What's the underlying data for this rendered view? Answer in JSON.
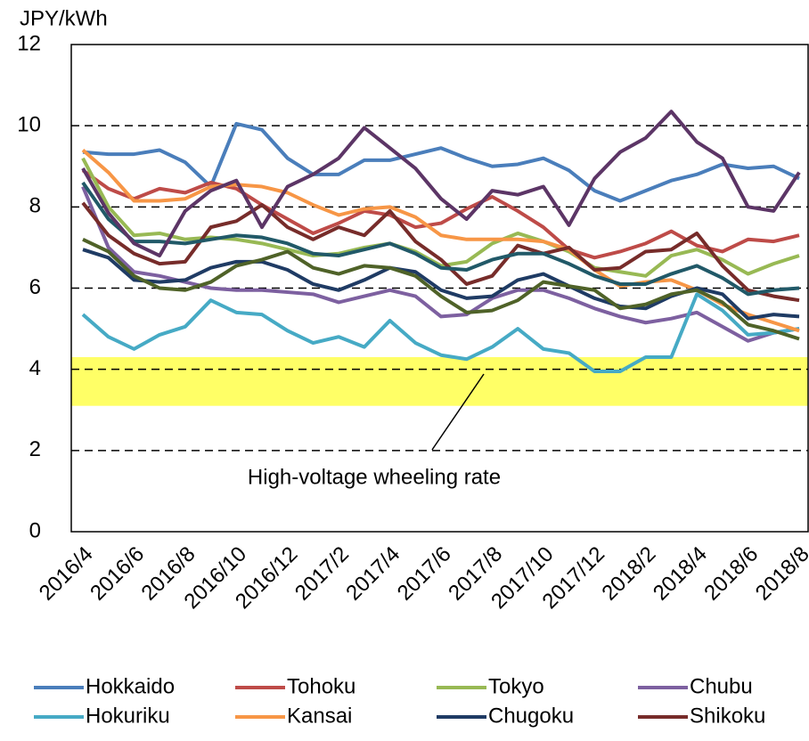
{
  "chart_data": {
    "type": "line",
    "y_label": "JPY/kWh",
    "annotation": "High-voltage wheeling rate",
    "band": {
      "range": [
        3.1,
        4.3
      ],
      "color": "#ffff66"
    },
    "categories": [
      "2016/4",
      null,
      "2016/6",
      null,
      "2016/8",
      null,
      "2016/10",
      null,
      "2016/12",
      null,
      "2017/2",
      null,
      "2017/4",
      null,
      "2017/6",
      null,
      "2017/8",
      null,
      "2017/10",
      null,
      "2017/12",
      null,
      "2018/2",
      null,
      "2018/4",
      null,
      "2018/6",
      null,
      "2018/8"
    ],
    "ylim": [
      0,
      12
    ],
    "yticks": [
      0,
      2,
      4,
      6,
      8,
      10,
      12
    ],
    "grid": true,
    "series": [
      {
        "name": "Hokkaido",
        "color": "#4a7ebb",
        "values": [
          9.35,
          9.3,
          9.3,
          9.4,
          9.1,
          8.5,
          10.05,
          9.9,
          9.2,
          8.8,
          8.8,
          9.15,
          9.15,
          9.3,
          9.45,
          9.2,
          9.0,
          9.05,
          9.2,
          8.9,
          8.4,
          8.15,
          8.4,
          8.65,
          8.8,
          9.05,
          8.95,
          9.0,
          8.7
        ]
      },
      {
        "name": "Tohoku",
        "color": "#be4b48",
        "values": [
          8.9,
          8.45,
          8.2,
          8.45,
          8.35,
          8.6,
          8.45,
          8.05,
          7.7,
          7.35,
          7.6,
          7.9,
          7.8,
          7.5,
          7.6,
          7.95,
          8.25,
          7.9,
          7.5,
          6.95,
          6.75,
          6.9,
          7.1,
          7.4,
          7.05,
          6.9,
          7.2,
          7.15,
          7.3
        ]
      },
      {
        "name": "Tokyo",
        "color": "#98b954",
        "values": [
          9.2,
          8.0,
          7.3,
          7.35,
          7.2,
          7.25,
          7.2,
          7.1,
          6.95,
          6.8,
          6.85,
          7.0,
          7.1,
          6.9,
          6.55,
          6.65,
          7.1,
          7.35,
          7.15,
          6.9,
          6.5,
          6.4,
          6.3,
          6.8,
          6.95,
          6.7,
          6.35,
          6.6,
          6.8
        ]
      },
      {
        "name": "Chubu",
        "color": "#7d60a0",
        "values": [
          8.5,
          7.0,
          6.4,
          6.3,
          6.15,
          6.0,
          5.95,
          5.95,
          5.9,
          5.85,
          5.65,
          5.8,
          5.95,
          5.8,
          5.3,
          5.35,
          5.75,
          5.95,
          5.95,
          5.75,
          5.5,
          5.3,
          5.15,
          5.25,
          5.4,
          5.05,
          4.7,
          4.9,
          5.0
        ]
      },
      {
        "name": "Hokuriku",
        "color": "#46aac5",
        "values": [
          5.35,
          4.8,
          4.5,
          4.85,
          5.05,
          5.7,
          5.4,
          5.35,
          4.95,
          4.65,
          4.8,
          4.55,
          5.2,
          4.65,
          4.35,
          4.25,
          4.55,
          5.0,
          4.5,
          4.4,
          3.95,
          3.95,
          4.3,
          4.3,
          5.85,
          5.45,
          4.85,
          4.9,
          5.0
        ]
      },
      {
        "name": "Kansai",
        "color": "#f79646",
        "values": [
          9.4,
          8.85,
          8.15,
          8.15,
          8.2,
          8.5,
          8.55,
          8.5,
          8.35,
          8.05,
          7.8,
          7.95,
          8.0,
          7.75,
          7.3,
          7.2,
          7.2,
          7.2,
          7.15,
          6.95,
          6.45,
          6.05,
          6.15,
          6.2,
          5.95,
          5.6,
          5.35,
          5.15,
          4.95
        ]
      },
      {
        "name": "Chugoku",
        "color": "#1f3b64",
        "values": [
          6.95,
          6.75,
          6.2,
          6.15,
          6.2,
          6.5,
          6.65,
          6.65,
          6.45,
          6.1,
          5.95,
          6.2,
          6.5,
          6.4,
          5.95,
          5.75,
          5.8,
          6.2,
          6.35,
          6.05,
          5.75,
          5.55,
          5.5,
          5.8,
          6.0,
          5.85,
          5.25,
          5.35,
          5.3
        ]
      },
      {
        "name": "Shikoku",
        "color": "#772c2a",
        "values": [
          8.1,
          7.3,
          6.85,
          6.6,
          6.65,
          7.5,
          7.65,
          8.05,
          7.5,
          7.2,
          7.5,
          7.3,
          7.9,
          7.15,
          6.7,
          6.1,
          6.3,
          7.05,
          6.85,
          7.0,
          6.45,
          6.5,
          6.9,
          6.95,
          7.35,
          6.55,
          5.95,
          5.8,
          5.7
        ]
      },
      {
        "color": "#215968",
        "values": [
          8.6,
          7.7,
          7.15,
          7.15,
          7.1,
          7.2,
          7.3,
          7.25,
          7.1,
          6.85,
          6.8,
          6.95,
          7.1,
          6.85,
          6.5,
          6.45,
          6.7,
          6.85,
          6.85,
          6.6,
          6.3,
          6.1,
          6.1,
          6.35,
          6.55,
          6.25,
          5.85,
          5.95,
          6.0
        ]
      },
      {
        "color": "#5c3566",
        "values": [
          8.95,
          7.85,
          7.1,
          6.8,
          7.9,
          8.4,
          8.65,
          7.5,
          8.5,
          8.8,
          9.2,
          9.95,
          9.45,
          8.95,
          8.2,
          7.7,
          8.4,
          8.3,
          8.5,
          7.55,
          8.7,
          9.35,
          9.7,
          10.35,
          9.6,
          9.2,
          8.0,
          7.9,
          8.85
        ]
      },
      {
        "color": "#4f6228",
        "values": [
          7.2,
          6.9,
          6.3,
          6.0,
          5.95,
          6.15,
          6.55,
          6.7,
          6.9,
          6.5,
          6.35,
          6.55,
          6.5,
          6.3,
          5.8,
          5.4,
          5.45,
          5.7,
          6.15,
          6.05,
          5.95,
          5.5,
          5.6,
          5.85,
          5.95,
          5.65,
          5.1,
          4.95,
          4.75
        ]
      }
    ]
  }
}
